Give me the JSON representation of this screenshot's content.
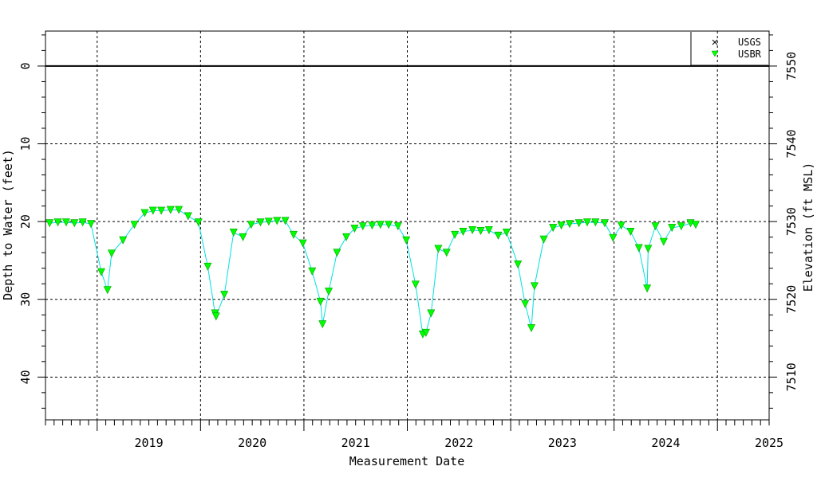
{
  "chart_data": {
    "type": "scatter",
    "xlabel": "Measurement Date",
    "ylabel_left": "Depth to Water (feet)",
    "ylabel_right": "Elevation (ft MSL)",
    "xlim": [
      2018.5,
      2025.5
    ],
    "ylim_left": [
      -4.5,
      45.5
    ],
    "ylim_right": [
      7554.5,
      7504.5
    ],
    "x_ticks": [
      "2019",
      "2020",
      "2021",
      "2022",
      "2023",
      "2024",
      "2025"
    ],
    "left_ticks": [
      "0",
      "10",
      "20",
      "30",
      "40"
    ],
    "right_ticks": [
      "7510",
      "7520",
      "7530",
      "7540",
      "7550"
    ],
    "grid": true,
    "legend_position": "top-right",
    "legend": [
      {
        "name": "USGS",
        "marker": "x",
        "color": "#000000"
      },
      {
        "name": "USBR",
        "marker": "triangle-down",
        "color": "#00ff00"
      }
    ],
    "line_color": "#00e0e0",
    "point_color": "#00ff00",
    "series": [
      {
        "name": "USBR",
        "points": [
          [
            2018.54,
            20.2
          ],
          [
            2018.62,
            20.1
          ],
          [
            2018.7,
            20.1
          ],
          [
            2018.78,
            20.2
          ],
          [
            2018.86,
            20.1
          ],
          [
            2018.94,
            20.3
          ],
          [
            2019.04,
            26.5
          ],
          [
            2019.1,
            28.8
          ],
          [
            2019.14,
            24.1
          ],
          [
            2019.25,
            22.4
          ],
          [
            2019.36,
            20.4
          ],
          [
            2019.46,
            18.9
          ],
          [
            2019.54,
            18.6
          ],
          [
            2019.62,
            18.6
          ],
          [
            2019.71,
            18.5
          ],
          [
            2019.79,
            18.5
          ],
          [
            2019.88,
            19.3
          ],
          [
            2019.98,
            20.1
          ],
          [
            2020.07,
            25.8
          ],
          [
            2020.14,
            31.8
          ],
          [
            2020.15,
            32.2
          ],
          [
            2020.23,
            29.4
          ],
          [
            2020.32,
            21.4
          ],
          [
            2020.41,
            22.0
          ],
          [
            2020.49,
            20.4
          ],
          [
            2020.58,
            20.1
          ],
          [
            2020.66,
            20.0
          ],
          [
            2020.74,
            19.9
          ],
          [
            2020.82,
            19.9
          ],
          [
            2020.9,
            21.7
          ],
          [
            2020.99,
            22.8
          ],
          [
            2021.08,
            26.4
          ],
          [
            2021.16,
            30.3
          ],
          [
            2021.18,
            33.2
          ],
          [
            2021.24,
            29.0
          ],
          [
            2021.32,
            24.0
          ],
          [
            2021.41,
            22.0
          ],
          [
            2021.49,
            20.9
          ],
          [
            2021.57,
            20.6
          ],
          [
            2021.66,
            20.5
          ],
          [
            2021.74,
            20.4
          ],
          [
            2021.82,
            20.4
          ],
          [
            2021.91,
            20.6
          ],
          [
            2021.99,
            22.4
          ],
          [
            2022.08,
            28.1
          ],
          [
            2022.15,
            34.5
          ],
          [
            2022.18,
            34.3
          ],
          [
            2022.23,
            31.8
          ],
          [
            2022.3,
            23.5
          ],
          [
            2022.38,
            24.0
          ],
          [
            2022.46,
            21.7
          ],
          [
            2022.54,
            21.3
          ],
          [
            2022.63,
            21.1
          ],
          [
            2022.71,
            21.2
          ],
          [
            2022.79,
            21.1
          ],
          [
            2022.88,
            21.8
          ],
          [
            2022.96,
            21.4
          ],
          [
            2023.07,
            25.5
          ],
          [
            2023.14,
            30.6
          ],
          [
            2023.2,
            33.7
          ],
          [
            2023.23,
            28.3
          ],
          [
            2023.32,
            22.3
          ],
          [
            2023.41,
            20.8
          ],
          [
            2023.49,
            20.5
          ],
          [
            2023.57,
            20.3
          ],
          [
            2023.66,
            20.2
          ],
          [
            2023.74,
            20.1
          ],
          [
            2023.82,
            20.1
          ],
          [
            2023.91,
            20.2
          ],
          [
            2023.99,
            22.1
          ],
          [
            2024.07,
            20.5
          ],
          [
            2024.16,
            21.3
          ],
          [
            2024.24,
            23.4
          ],
          [
            2024.32,
            28.6
          ],
          [
            2024.33,
            23.5
          ],
          [
            2024.4,
            20.6
          ],
          [
            2024.48,
            22.6
          ],
          [
            2024.56,
            20.8
          ],
          [
            2024.65,
            20.6
          ],
          [
            2024.74,
            20.2
          ],
          [
            2024.79,
            20.4
          ]
        ]
      }
    ]
  }
}
